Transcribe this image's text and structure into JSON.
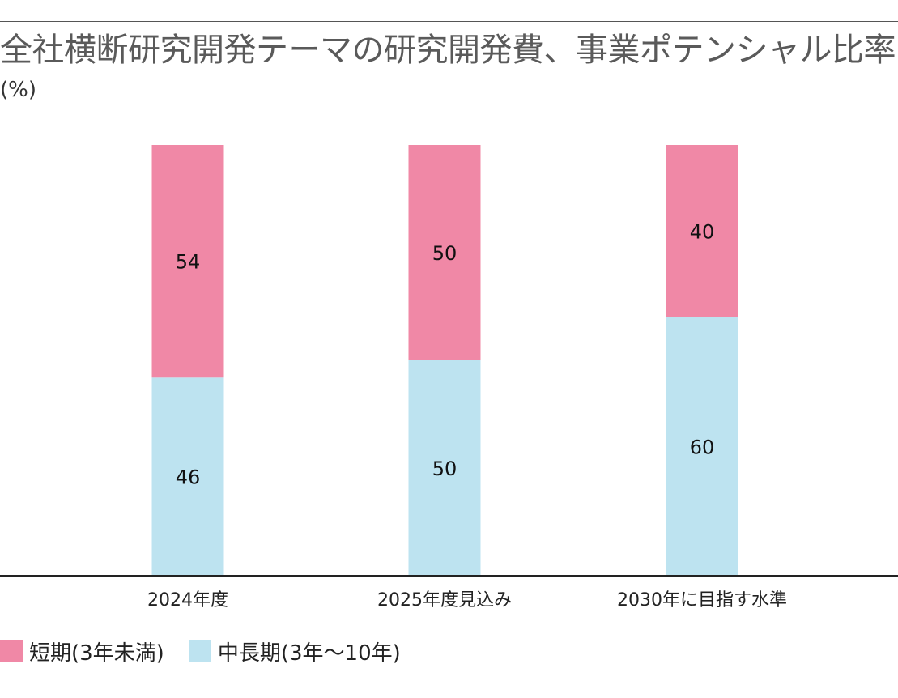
{
  "chart_data": {
    "type": "bar",
    "stacked": true,
    "title": "全社横断研究開発テーマの研究開発費、事業ポテンシャル比率",
    "unit_label": "(%)",
    "categories": [
      "2024年度",
      "2025年度見込み",
      "2030年に目指す水準"
    ],
    "series": [
      {
        "name": "中長期(3年〜10年)",
        "values": [
          46,
          50,
          60
        ],
        "color": "#bde3f0"
      },
      {
        "name": "短期(3年未満)",
        "values": [
          54,
          50,
          40
        ],
        "color": "#f088a6"
      }
    ],
    "ylim": [
      0,
      100
    ],
    "xlabel": "",
    "ylabel": "",
    "grid": false,
    "legend_position": "bottom-left"
  }
}
